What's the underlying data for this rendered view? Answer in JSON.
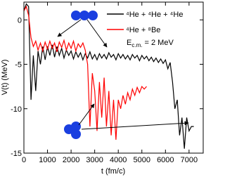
{
  "chart_data": {
    "type": "line",
    "xlabel": "t (fm/c)",
    "ylabel": "V(t) (MeV)",
    "xlim": [
      0,
      7600
    ],
    "ylim": [
      -15,
      2
    ],
    "xticks": [
      0,
      1000,
      2000,
      3000,
      4000,
      5000,
      6000,
      7000
    ],
    "yticks": [
      -15,
      -10,
      -5,
      0
    ],
    "legend": "upper right",
    "annotation": {
      "main": "E",
      "sub": "c.m.",
      "rest": " = 2 MeV"
    },
    "series": [
      {
        "name": "⁴He + ⁴He + ⁴He",
        "color": "#000000",
        "x": [
          0,
          100,
          200,
          300,
          400,
          500,
          600,
          700,
          800,
          900,
          1000,
          1100,
          1200,
          1300,
          1400,
          1500,
          1600,
          1700,
          1800,
          1900,
          2000,
          2100,
          2200,
          2300,
          2400,
          2500,
          2600,
          2700,
          2800,
          2900,
          3000,
          3100,
          3200,
          3300,
          3400,
          3500,
          3600,
          3700,
          3800,
          3900,
          4000,
          4100,
          4200,
          4300,
          4400,
          4500,
          4600,
          4700,
          4800,
          4900,
          5000,
          5100,
          5200,
          5300,
          5400,
          5500,
          5600,
          5700,
          5800,
          5900,
          6000,
          6100,
          6200,
          6300,
          6400,
          6500,
          6600,
          6700,
          6800,
          6900,
          7000,
          7100,
          7200
        ],
        "values": [
          1.0,
          1.8,
          1.5,
          -9,
          -4,
          -8,
          -3.5,
          -5,
          -3,
          -4.5,
          -3,
          -4,
          -2.8,
          -4.2,
          -3,
          -4,
          -3.2,
          -4.3,
          -3.4,
          -4,
          -3.5,
          -4.4,
          -3.6,
          -4.2,
          -3.7,
          -4.5,
          -3.8,
          -4.3,
          -3.6,
          -4.4,
          -3.9,
          -4.5,
          -3.8,
          -4.3,
          -3.9,
          -4.4,
          -3.7,
          -4.2,
          -3.9,
          -4.5,
          -3.8,
          -4.3,
          -3.9,
          -4.4,
          -4,
          -4.5,
          -3.9,
          -4.3,
          -4,
          -4.6,
          -4,
          -4.4,
          -4.1,
          -4.6,
          -4.2,
          -4.7,
          -4.3,
          -4.8,
          -4.4,
          -4.9,
          -4.5,
          -5.5,
          -4.8,
          -7,
          -10,
          -9,
          -13,
          -11,
          -14.5,
          -11,
          -12.5,
          -12,
          -12
        ]
      },
      {
        "name": "⁴He + ⁸Be",
        "color": "#ff0000",
        "x": [
          0,
          100,
          200,
          300,
          400,
          500,
          600,
          700,
          800,
          900,
          1000,
          1100,
          1200,
          1300,
          1400,
          1500,
          1600,
          1700,
          1800,
          1900,
          2000,
          2100,
          2200,
          2300,
          2400,
          2500,
          2600,
          2700,
          2800,
          2900,
          3000,
          3100,
          3200,
          3300,
          3400,
          3500,
          3600,
          3700,
          3800,
          3900,
          4000,
          4100,
          4200,
          4300,
          4400,
          4500,
          4600,
          4700,
          4800,
          4900,
          5000,
          5100,
          5200
        ],
        "values": [
          1.0,
          1.5,
          0.5,
          -2,
          -3,
          -2.4,
          -3.4,
          -2.6,
          -3.5,
          -2.5,
          -3.3,
          -2.4,
          -3.2,
          -2.6,
          -3.6,
          -2.5,
          -3.1,
          -2.3,
          -3.4,
          -2.6,
          -3.2,
          -2.4,
          -3.5,
          -2.7,
          -3.1,
          -2.6,
          -3.4,
          -5,
          -12,
          -6,
          -8,
          -12.5,
          -7,
          -11,
          -6.5,
          -12,
          -8,
          -13,
          -9,
          -13.5,
          -9,
          -10,
          -8.5,
          -9.5,
          -8.2,
          -9,
          -7.8,
          -8.5,
          -7.6,
          -8.2,
          -7.5,
          -7.8,
          -7.5
        ]
      }
    ]
  }
}
